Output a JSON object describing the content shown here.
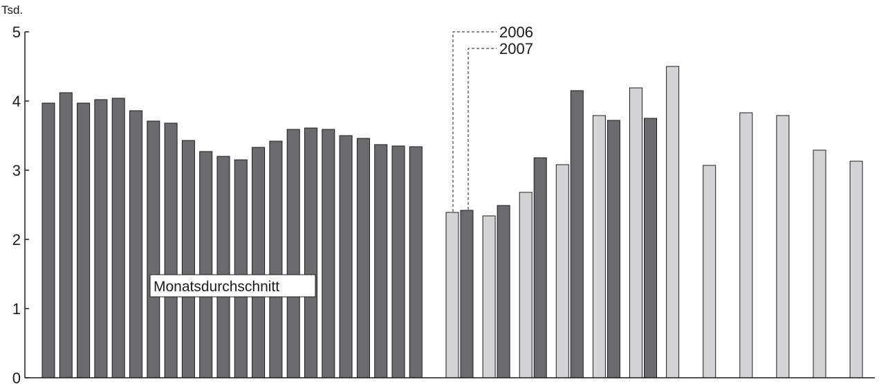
{
  "chart_data": {
    "type": "bar",
    "unit_label": "Tsd.",
    "ylim": [
      0,
      5
    ],
    "y_ticks": [
      0,
      1,
      2,
      3,
      4,
      5
    ],
    "grid": false,
    "colors": {
      "dark": "#6b6b6f",
      "light": "#d3d4d6",
      "outline": "#1a1a1a"
    },
    "annotation": "Monatsdurchschnitt",
    "monthly_average_values": [
      3.97,
      4.12,
      3.97,
      4.02,
      4.04,
      3.86,
      3.71,
      3.68,
      3.43,
      3.27,
      3.2,
      3.15,
      3.33,
      3.42,
      3.59,
      3.61,
      3.59,
      3.5,
      3.46,
      3.37,
      3.35,
      3.34
    ],
    "series": [
      {
        "name": "2006",
        "color": "light",
        "values": [
          2.39,
          2.34,
          2.68,
          3.08,
          3.79,
          4.19,
          4.5,
          3.07,
          3.83,
          3.79,
          3.29,
          3.13
        ]
      },
      {
        "name": "2007",
        "color": "dark",
        "values": [
          2.42,
          2.49,
          3.18,
          4.15,
          3.72,
          3.75
        ]
      }
    ]
  }
}
